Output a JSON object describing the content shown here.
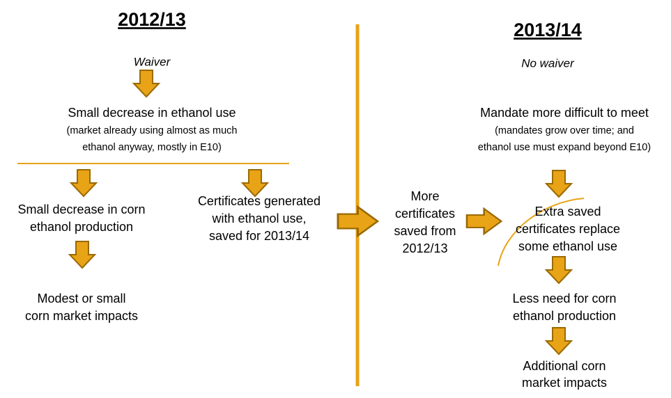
{
  "left": {
    "header": "2012/13",
    "condition": "Waiver",
    "main": {
      "title": "Small decrease in ethanol use",
      "detail": [
        "(market already using almost as much",
        "ethanol anyway, mostly in E10)"
      ]
    },
    "production": [
      "Small decrease in corn",
      "ethanol production"
    ],
    "certificates": [
      "Certificates generated",
      "with ethanol use,",
      "saved for 2013/14"
    ],
    "impacts": [
      "Modest or small",
      "corn market impacts"
    ]
  },
  "middle": {
    "text": [
      "More",
      "certificates",
      "saved from",
      "2012/13"
    ]
  },
  "right": {
    "header": "2013/14",
    "condition": "No waiver",
    "main": {
      "title": "Mandate more difficult to meet",
      "detail": [
        "(mandates grow over time; and",
        "ethanol use must expand beyond E10)"
      ]
    },
    "replace": [
      "Extra saved",
      "certificates replace",
      "some ethanol use"
    ],
    "production": [
      "Less need for corn",
      "ethanol production"
    ],
    "impacts": [
      "Additional corn",
      "market impacts"
    ]
  }
}
